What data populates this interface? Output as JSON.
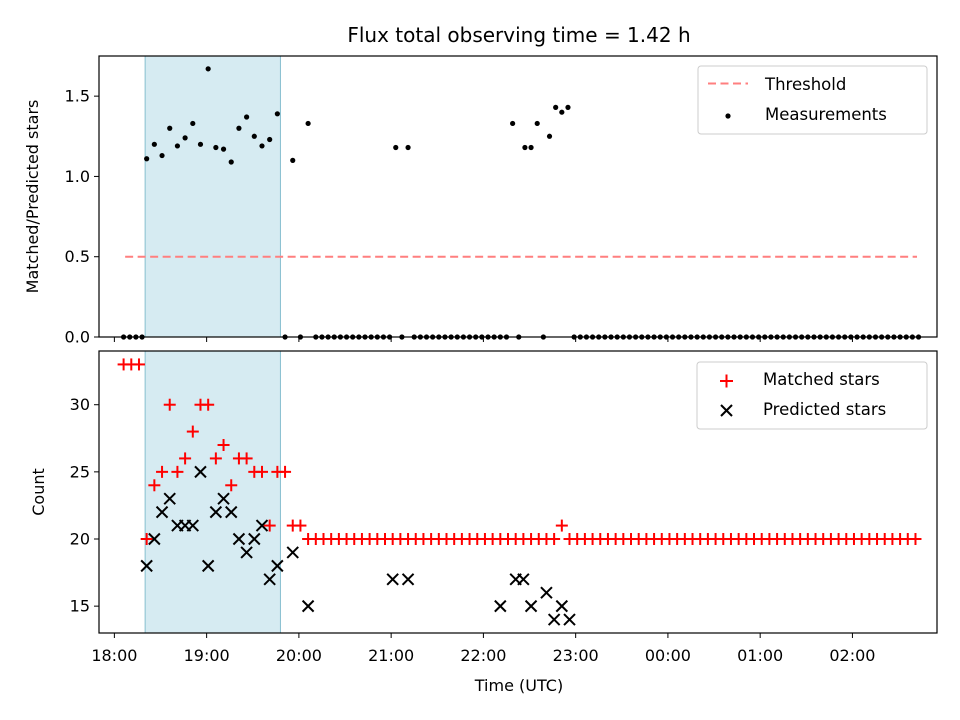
{
  "title": "Flux total observing time = 1.42 h",
  "xlabel": "Time (UTC)",
  "x_ticks": [
    "18:00",
    "19:00",
    "20:00",
    "21:00",
    "22:00",
    "23:00",
    "00:00",
    "01:00",
    "02:00"
  ],
  "colors": {
    "threshold": "#ff7f7f",
    "measurements": "#000000",
    "matched": "#ff0000",
    "predicted": "#000000",
    "highlight": "#add8e6"
  },
  "chart_data": [
    {
      "type": "scatter",
      "ylabel": "Matched/Predicted stars",
      "ylim": [
        0,
        1.75
      ],
      "yticks": [
        0.0,
        0.5,
        1.0,
        1.5
      ],
      "ytick_labels": [
        "0.0",
        "0.5",
        "1.0",
        "1.5"
      ],
      "xlim": [
        "17:50",
        "02:55"
      ],
      "highlight_span": [
        "18:20",
        "19:48"
      ],
      "legend": [
        "Threshold",
        "Measurements"
      ],
      "legend_position": "top-right",
      "threshold": {
        "name": "Threshold",
        "y": 0.5,
        "x_range": [
          "18:07",
          "02:42"
        ]
      },
      "measurements": {
        "name": "Measurements",
        "points": [
          [
            "18:06",
            0
          ],
          [
            "18:10",
            0
          ],
          [
            "18:14",
            0
          ],
          [
            "18:18",
            0
          ],
          [
            "18:21",
            1.11
          ],
          [
            "18:26",
            1.2
          ],
          [
            "18:31",
            1.13
          ],
          [
            "18:36",
            1.3
          ],
          [
            "18:41",
            1.19
          ],
          [
            "18:46",
            1.24
          ],
          [
            "18:51",
            1.33
          ],
          [
            "18:56",
            1.2
          ],
          [
            "19:01",
            1.67
          ],
          [
            "19:06",
            1.18
          ],
          [
            "19:11",
            1.17
          ],
          [
            "19:16",
            1.09
          ],
          [
            "19:21",
            1.3
          ],
          [
            "19:26",
            1.37
          ],
          [
            "19:31",
            1.25
          ],
          [
            "19:36",
            1.19
          ],
          [
            "19:41",
            1.23
          ],
          [
            "19:46",
            1.39
          ],
          [
            "19:51",
            0
          ],
          [
            "19:56",
            1.1
          ],
          [
            "20:01",
            0
          ],
          [
            "20:06",
            1.33
          ],
          [
            "20:11",
            0
          ],
          [
            "20:15",
            0
          ],
          [
            "20:19",
            0
          ],
          [
            "20:23",
            0
          ],
          [
            "20:27",
            0
          ],
          [
            "20:31",
            0
          ],
          [
            "20:35",
            0
          ],
          [
            "20:39",
            0
          ],
          [
            "20:43",
            0
          ],
          [
            "20:47",
            0
          ],
          [
            "20:51",
            0
          ],
          [
            "20:55",
            0
          ],
          [
            "20:59",
            0
          ],
          [
            "21:03",
            1.18
          ],
          [
            "21:07",
            0
          ],
          [
            "21:11",
            1.18
          ],
          [
            "21:15",
            0
          ],
          [
            "21:19",
            0
          ],
          [
            "21:23",
            0
          ],
          [
            "21:27",
            0
          ],
          [
            "21:31",
            0
          ],
          [
            "21:35",
            0
          ],
          [
            "21:39",
            0
          ],
          [
            "21:43",
            0
          ],
          [
            "21:47",
            0
          ],
          [
            "21:51",
            0
          ],
          [
            "21:55",
            0
          ],
          [
            "21:59",
            0
          ],
          [
            "22:03",
            0
          ],
          [
            "22:07",
            0
          ],
          [
            "22:11",
            0
          ],
          [
            "22:15",
            0
          ],
          [
            "22:19",
            1.33
          ],
          [
            "22:23",
            0
          ],
          [
            "22:27",
            1.18
          ],
          [
            "22:31",
            1.18
          ],
          [
            "22:35",
            1.33
          ],
          [
            "22:39",
            0
          ],
          [
            "22:43",
            1.25
          ],
          [
            "22:47",
            1.43
          ],
          [
            "22:51",
            1.4
          ],
          [
            "22:55",
            1.43
          ],
          [
            "22:59",
            0
          ],
          [
            "23:03",
            0
          ],
          [
            "23:07",
            0
          ],
          [
            "23:11",
            0
          ],
          [
            "23:15",
            0
          ],
          [
            "23:19",
            0
          ],
          [
            "23:23",
            0
          ],
          [
            "23:27",
            0
          ],
          [
            "23:31",
            0
          ],
          [
            "23:35",
            0
          ],
          [
            "23:39",
            0
          ],
          [
            "23:43",
            0
          ],
          [
            "23:47",
            0
          ],
          [
            "23:51",
            0
          ],
          [
            "23:55",
            0
          ],
          [
            "23:59",
            0
          ],
          [
            "00:03",
            0
          ],
          [
            "00:07",
            0
          ],
          [
            "00:11",
            0
          ],
          [
            "00:15",
            0
          ],
          [
            "00:19",
            0
          ],
          [
            "00:23",
            0
          ],
          [
            "00:27",
            0
          ],
          [
            "00:31",
            0
          ],
          [
            "00:35",
            0
          ],
          [
            "00:39",
            0
          ],
          [
            "00:43",
            0
          ],
          [
            "00:47",
            0
          ],
          [
            "00:51",
            0
          ],
          [
            "00:55",
            0
          ],
          [
            "00:59",
            0
          ],
          [
            "01:03",
            0
          ],
          [
            "01:07",
            0
          ],
          [
            "01:11",
            0
          ],
          [
            "01:15",
            0
          ],
          [
            "01:19",
            0
          ],
          [
            "01:23",
            0
          ],
          [
            "01:27",
            0
          ],
          [
            "01:31",
            0
          ],
          [
            "01:35",
            0
          ],
          [
            "01:39",
            0
          ],
          [
            "01:43",
            0
          ],
          [
            "01:47",
            0
          ],
          [
            "01:51",
            0
          ],
          [
            "01:55",
            0
          ],
          [
            "01:59",
            0
          ],
          [
            "02:03",
            0
          ],
          [
            "02:07",
            0
          ],
          [
            "02:11",
            0
          ],
          [
            "02:15",
            0
          ],
          [
            "02:19",
            0
          ],
          [
            "02:23",
            0
          ],
          [
            "02:27",
            0
          ],
          [
            "02:31",
            0
          ],
          [
            "02:35",
            0
          ],
          [
            "02:39",
            0
          ],
          [
            "02:43",
            0
          ]
        ]
      }
    },
    {
      "type": "scatter",
      "ylabel": "Count",
      "ylim": [
        13,
        34
      ],
      "yticks": [
        15,
        20,
        25,
        30
      ],
      "ytick_labels": [
        "15",
        "20",
        "25",
        "30"
      ],
      "xlim": [
        "17:50",
        "02:55"
      ],
      "highlight_span": [
        "18:20",
        "19:48"
      ],
      "legend": [
        "Matched stars",
        "Predicted stars"
      ],
      "legend_position": "top-right",
      "matched": {
        "name": "Matched stars",
        "points": [
          [
            "18:06",
            33
          ],
          [
            "18:11",
            33
          ],
          [
            "18:16",
            33
          ],
          [
            "18:21",
            20
          ],
          [
            "18:26",
            24
          ],
          [
            "18:31",
            25
          ],
          [
            "18:36",
            30
          ],
          [
            "18:41",
            25
          ],
          [
            "18:46",
            26
          ],
          [
            "18:51",
            28
          ],
          [
            "18:56",
            30
          ],
          [
            "19:01",
            30
          ],
          [
            "19:06",
            26
          ],
          [
            "19:11",
            27
          ],
          [
            "19:16",
            24
          ],
          [
            "19:21",
            26
          ],
          [
            "19:26",
            26
          ],
          [
            "19:31",
            25
          ],
          [
            "19:36",
            25
          ],
          [
            "19:41",
            21
          ],
          [
            "19:46",
            25
          ],
          [
            "19:51",
            25
          ],
          [
            "19:56",
            21
          ],
          [
            "20:01",
            21
          ],
          [
            "20:06",
            20
          ],
          [
            "20:11",
            20
          ],
          [
            "20:16",
            20
          ],
          [
            "20:21",
            20
          ],
          [
            "20:26",
            20
          ],
          [
            "20:31",
            20
          ],
          [
            "20:36",
            20
          ],
          [
            "20:41",
            20
          ],
          [
            "20:46",
            20
          ],
          [
            "20:51",
            20
          ],
          [
            "20:56",
            20
          ],
          [
            "21:01",
            20
          ],
          [
            "21:06",
            20
          ],
          [
            "21:11",
            20
          ],
          [
            "21:16",
            20
          ],
          [
            "21:21",
            20
          ],
          [
            "21:26",
            20
          ],
          [
            "21:31",
            20
          ],
          [
            "21:36",
            20
          ],
          [
            "21:41",
            20
          ],
          [
            "21:46",
            20
          ],
          [
            "21:51",
            20
          ],
          [
            "21:56",
            20
          ],
          [
            "22:01",
            20
          ],
          [
            "22:06",
            20
          ],
          [
            "22:11",
            20
          ],
          [
            "22:16",
            20
          ],
          [
            "22:21",
            20
          ],
          [
            "22:26",
            20
          ],
          [
            "22:31",
            20
          ],
          [
            "22:36",
            20
          ],
          [
            "22:41",
            20
          ],
          [
            "22:46",
            20
          ],
          [
            "22:51",
            21
          ],
          [
            "22:56",
            20
          ],
          [
            "23:01",
            20
          ],
          [
            "23:06",
            20
          ],
          [
            "23:11",
            20
          ],
          [
            "23:16",
            20
          ],
          [
            "23:21",
            20
          ],
          [
            "23:26",
            20
          ],
          [
            "23:31",
            20
          ],
          [
            "23:36",
            20
          ],
          [
            "23:41",
            20
          ],
          [
            "23:46",
            20
          ],
          [
            "23:51",
            20
          ],
          [
            "23:56",
            20
          ],
          [
            "00:01",
            20
          ],
          [
            "00:06",
            20
          ],
          [
            "00:11",
            20
          ],
          [
            "00:16",
            20
          ],
          [
            "00:21",
            20
          ],
          [
            "00:26",
            20
          ],
          [
            "00:31",
            20
          ],
          [
            "00:36",
            20
          ],
          [
            "00:41",
            20
          ],
          [
            "00:46",
            20
          ],
          [
            "00:51",
            20
          ],
          [
            "00:56",
            20
          ],
          [
            "01:01",
            20
          ],
          [
            "01:06",
            20
          ],
          [
            "01:11",
            20
          ],
          [
            "01:16",
            20
          ],
          [
            "01:21",
            20
          ],
          [
            "01:26",
            20
          ],
          [
            "01:31",
            20
          ],
          [
            "01:36",
            20
          ],
          [
            "01:41",
            20
          ],
          [
            "01:46",
            20
          ],
          [
            "01:51",
            20
          ],
          [
            "01:56",
            20
          ],
          [
            "02:01",
            20
          ],
          [
            "02:06",
            20
          ],
          [
            "02:11",
            20
          ],
          [
            "02:16",
            20
          ],
          [
            "02:21",
            20
          ],
          [
            "02:26",
            20
          ],
          [
            "02:31",
            20
          ],
          [
            "02:36",
            20
          ],
          [
            "02:41",
            20
          ]
        ]
      },
      "predicted": {
        "name": "Predicted stars",
        "points": [
          [
            "18:21",
            18
          ],
          [
            "18:26",
            20
          ],
          [
            "18:31",
            22
          ],
          [
            "18:36",
            23
          ],
          [
            "18:41",
            21
          ],
          [
            "18:46",
            21
          ],
          [
            "18:51",
            21
          ],
          [
            "18:56",
            25
          ],
          [
            "19:01",
            18
          ],
          [
            "19:06",
            22
          ],
          [
            "19:11",
            23
          ],
          [
            "19:16",
            22
          ],
          [
            "19:21",
            20
          ],
          [
            "19:26",
            19
          ],
          [
            "19:31",
            20
          ],
          [
            "19:36",
            21
          ],
          [
            "19:41",
            17
          ],
          [
            "19:46",
            18
          ],
          [
            "19:56",
            19
          ],
          [
            "20:06",
            15
          ],
          [
            "21:01",
            17
          ],
          [
            "21:11",
            17
          ],
          [
            "22:11",
            15
          ],
          [
            "22:21",
            17
          ],
          [
            "22:26",
            17
          ],
          [
            "22:31",
            15
          ],
          [
            "22:41",
            16
          ],
          [
            "22:46",
            14
          ],
          [
            "22:51",
            15
          ],
          [
            "22:56",
            14
          ]
        ]
      }
    }
  ]
}
